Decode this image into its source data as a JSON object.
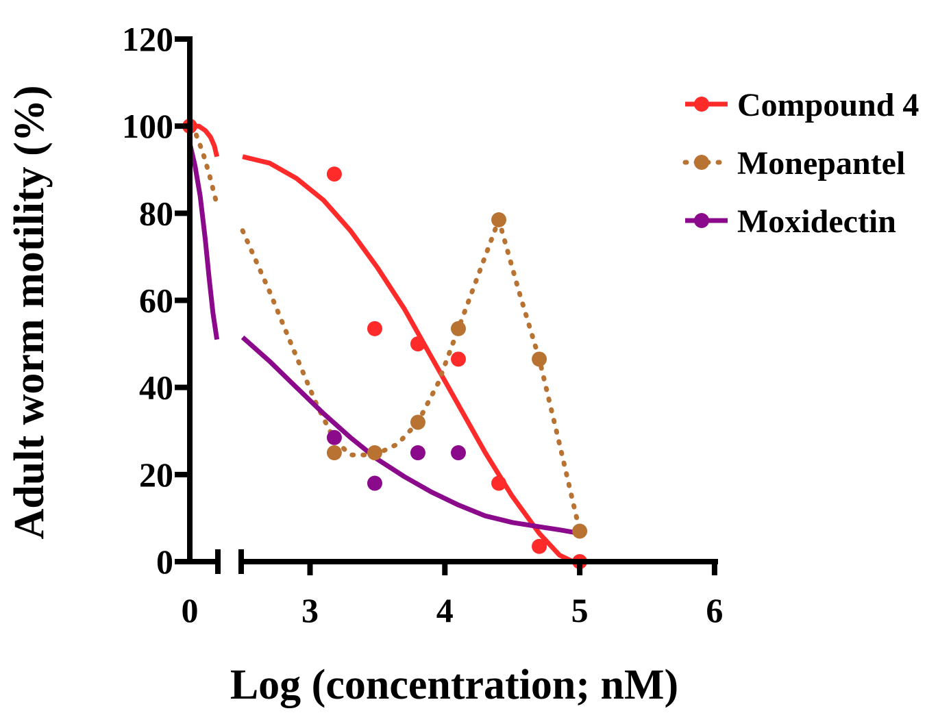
{
  "chart_data": {
    "type": "scatter",
    "title": "",
    "xlabel": "Log (concentration; nM)",
    "ylabel": "Adult worm motility (%)",
    "ylim": [
      0,
      120
    ],
    "y_ticks": [
      0,
      20,
      40,
      60,
      80,
      100,
      120
    ],
    "x_axis": {
      "broken": true,
      "segments": [
        {
          "range": [
            0,
            0.21
          ],
          "ticks": [
            0
          ]
        },
        {
          "range": [
            2.5,
            6
          ],
          "ticks": [
            3,
            4,
            5,
            6
          ]
        }
      ],
      "tick_labels": [
        "0",
        "3",
        "4",
        "5",
        "6"
      ]
    },
    "grid": false,
    "legend_position": "top-right",
    "series": [
      {
        "name": "Compound 4",
        "color": "#ff2a2a",
        "line_style": "solid",
        "points": [
          [
            0,
            100
          ],
          [
            3.18,
            89
          ],
          [
            3.48,
            53.5
          ],
          [
            3.8,
            50
          ],
          [
            4.1,
            46.5
          ],
          [
            4.4,
            18
          ],
          [
            4.7,
            3.5
          ],
          [
            5.0,
            0
          ]
        ],
        "fit_seg1": [
          [
            0,
            100
          ],
          [
            0.07,
            100
          ],
          [
            0.12,
            99
          ],
          [
            0.16,
            97.5
          ],
          [
            0.19,
            95.5
          ],
          [
            0.21,
            93
          ]
        ],
        "fit_seg2": [
          [
            2.5,
            93
          ],
          [
            2.7,
            91.5
          ],
          [
            2.9,
            88
          ],
          [
            3.1,
            83
          ],
          [
            3.3,
            76
          ],
          [
            3.5,
            67.5
          ],
          [
            3.7,
            58
          ],
          [
            3.9,
            47
          ],
          [
            4.1,
            36
          ],
          [
            4.3,
            25
          ],
          [
            4.5,
            15
          ],
          [
            4.7,
            6.5
          ],
          [
            4.85,
            1.5
          ],
          [
            4.95,
            0
          ]
        ]
      },
      {
        "name": "Monepantel",
        "color": "#b87333",
        "line_style": "dotted",
        "points": [
          [
            3.18,
            25
          ],
          [
            3.48,
            25
          ],
          [
            3.8,
            32
          ],
          [
            4.1,
            53.5
          ],
          [
            4.4,
            78.5
          ],
          [
            4.7,
            46.5
          ],
          [
            5.0,
            7
          ]
        ],
        "fit_seg1": [
          [
            0,
            100
          ],
          [
            0.05,
            98
          ],
          [
            0.1,
            94
          ],
          [
            0.15,
            89
          ],
          [
            0.21,
            82
          ]
        ],
        "fit_seg2": [
          [
            2.5,
            76
          ],
          [
            2.7,
            62
          ],
          [
            2.9,
            47
          ],
          [
            3.05,
            36
          ],
          [
            3.18,
            28
          ],
          [
            3.3,
            24.5
          ],
          [
            3.48,
            24.5
          ],
          [
            3.65,
            27
          ],
          [
            3.8,
            32
          ],
          [
            3.95,
            41
          ],
          [
            4.1,
            53.5
          ],
          [
            4.25,
            66
          ],
          [
            4.4,
            78.5
          ],
          [
            4.55,
            62
          ],
          [
            4.7,
            46.5
          ],
          [
            4.85,
            27
          ],
          [
            5.0,
            7
          ]
        ]
      },
      {
        "name": "Moxidectin",
        "color": "#8b0a8b",
        "line_style": "solid",
        "points": [
          [
            3.18,
            28.5
          ],
          [
            3.48,
            18
          ],
          [
            3.8,
            25
          ],
          [
            4.1,
            25
          ]
        ],
        "fit_seg1": [
          [
            0,
            96
          ],
          [
            0.04,
            91
          ],
          [
            0.08,
            84
          ],
          [
            0.12,
            74
          ],
          [
            0.15,
            65
          ],
          [
            0.18,
            57
          ],
          [
            0.21,
            51
          ]
        ],
        "fit_seg2": [
          [
            2.5,
            51.5
          ],
          [
            2.7,
            46
          ],
          [
            2.9,
            40
          ],
          [
            3.1,
            34
          ],
          [
            3.3,
            28.5
          ],
          [
            3.5,
            23.5
          ],
          [
            3.7,
            19.5
          ],
          [
            3.9,
            16
          ],
          [
            4.1,
            13
          ],
          [
            4.3,
            10.5
          ],
          [
            4.5,
            9
          ],
          [
            4.7,
            8
          ],
          [
            4.85,
            7.3
          ],
          [
            5.0,
            6.5
          ]
        ]
      }
    ]
  }
}
